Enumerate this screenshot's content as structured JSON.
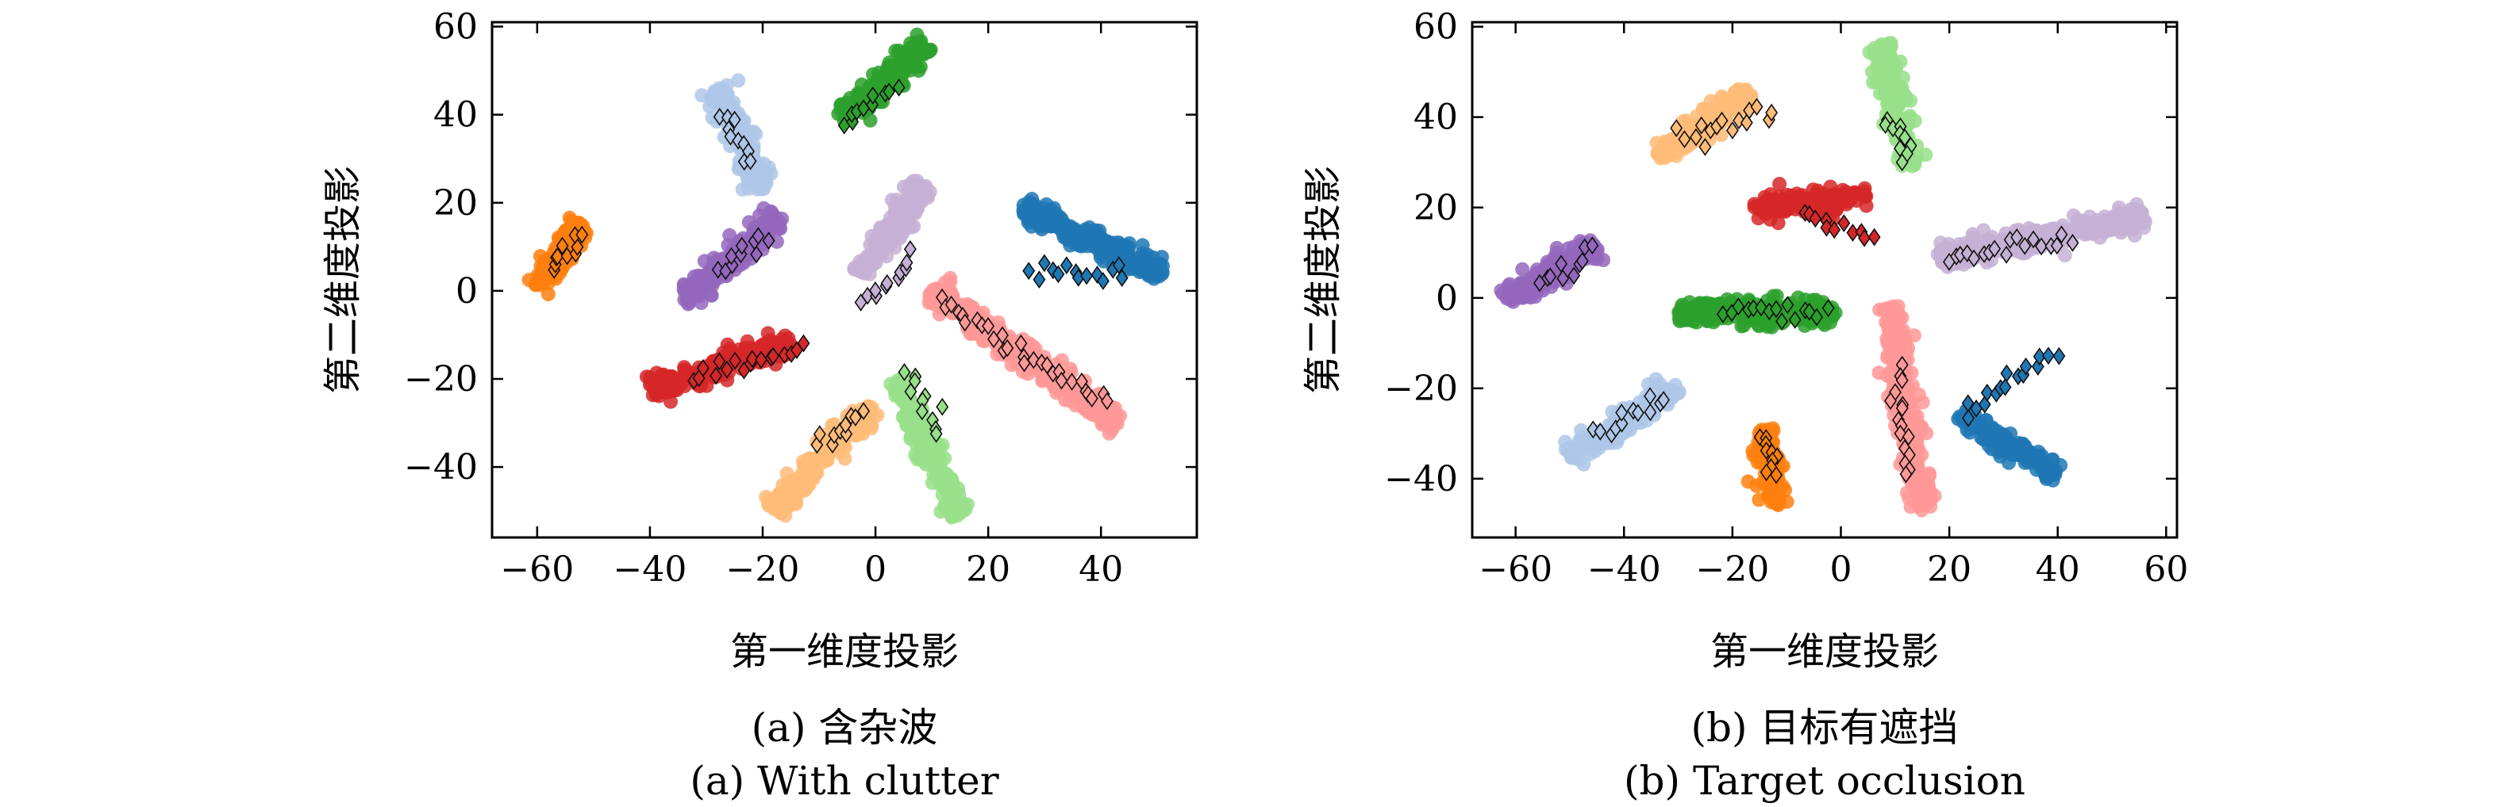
{
  "chart_data": [
    {
      "type": "scatter",
      "caption_cn": "(a) 含杂波",
      "caption_en": "(a) With clutter",
      "xlabel": "第一维度投影",
      "ylabel": "第二维度投影",
      "xlim": [
        -68,
        57
      ],
      "ylim": [
        -56,
        61
      ],
      "xticks": [
        -60,
        -40,
        -20,
        0,
        20,
        40
      ],
      "yticks": [
        -40,
        -20,
        0,
        20,
        40,
        60
      ],
      "grid": false,
      "legend": "none",
      "marker_note": "filled dots = training features; black-edged diamonds = test features",
      "clusters": [
        {
          "color": "#ff7f0e",
          "dots": [
            [
              -60,
              1
            ],
            [
              -52,
              15
            ]
          ],
          "diamonds": [
            [
              -58,
              5
            ],
            [
              -52,
              13
            ]
          ]
        },
        {
          "color": "#aec7e8",
          "dots": [
            [
              -28,
              46
            ],
            [
              -20,
              23
            ]
          ],
          "diamonds": [
            [
              -27,
              41
            ],
            [
              -22,
              28
            ]
          ]
        },
        {
          "color": "#9467bd",
          "dots": [
            [
              -34,
              -2
            ],
            [
              -17,
              17
            ]
          ],
          "diamonds": [
            [
              -28,
              4
            ],
            [
              -19,
              13
            ]
          ]
        },
        {
          "color": "#d62728",
          "dots": [
            [
              -40,
              -22
            ],
            [
              -15,
              -12
            ]
          ],
          "diamonds": [
            [
              -33,
              -19
            ],
            [
              -12,
              -13
            ]
          ]
        },
        {
          "color": "#2ca02c",
          "dots": [
            [
              -6,
              39
            ],
            [
              9,
              56
            ]
          ],
          "diamonds": [
            [
              -6,
              37
            ],
            [
              4,
              47
            ]
          ]
        },
        {
          "color": "#c5b0d5",
          "dots": [
            [
              -3,
              4
            ],
            [
              9,
              24
            ]
          ],
          "diamonds": [
            [
              -3,
              -3
            ],
            [
              7,
              9
            ]
          ]
        },
        {
          "color": "#1f77b4",
          "dots": [
            [
              26,
              19
            ],
            [
              51,
              4
            ]
          ],
          "diamonds": [
            [
              27,
              5
            ],
            [
              45,
              4
            ]
          ]
        },
        {
          "color": "#ff9896",
          "dots": [
            [
              10,
              0
            ],
            [
              43,
              -30
            ]
          ],
          "diamonds": [
            [
              11,
              -2
            ],
            [
              42,
              -26
            ]
          ]
        },
        {
          "color": "#ffbb78",
          "dots": [
            [
              -18,
              -50
            ],
            [
              -1,
              -26
            ]
          ],
          "diamonds": [
            [
              -10,
              -36
            ],
            [
              -2,
              -27
            ]
          ]
        },
        {
          "color": "#98df8a",
          "dots": [
            [
              4,
              -20
            ],
            [
              15,
              -51
            ]
          ],
          "diamonds": [
            [
              5,
              -18
            ],
            [
              12,
              -33
            ]
          ]
        }
      ]
    },
    {
      "type": "scatter",
      "caption_cn": "(b) 目标有遮挡",
      "caption_en": "(b) Target occlusion",
      "xlabel": "第一维度投影",
      "ylabel": "第二维度投影",
      "xlim": [
        -68,
        62
      ],
      "ylim": [
        -53,
        61
      ],
      "xticks": [
        -60,
        -40,
        -20,
        0,
        20,
        40,
        60
      ],
      "yticks": [
        -40,
        -20,
        0,
        20,
        40,
        60
      ],
      "grid": false,
      "legend": "none",
      "marker_note": "filled dots = training features; black-edged diamonds = test features",
      "clusters": [
        {
          "color": "#ffbb78",
          "dots": [
            [
              -34,
              31
            ],
            [
              -17,
              46
            ]
          ],
          "diamonds": [
            [
              -30,
              34
            ],
            [
              -12,
              42
            ]
          ]
        },
        {
          "color": "#98df8a",
          "dots": [
            [
              7,
              56
            ],
            [
              13,
              29
            ]
          ],
          "diamonds": [
            [
              8,
              40
            ],
            [
              13,
              30
            ]
          ]
        },
        {
          "color": "#d62728",
          "dots": [
            [
              -16,
              20
            ],
            [
              5,
              22
            ]
          ],
          "diamonds": [
            [
              -7,
              20
            ],
            [
              6,
              12
            ]
          ]
        },
        {
          "color": "#9467bd",
          "dots": [
            [
              -62,
              0
            ],
            [
              -45,
              11
            ]
          ],
          "diamonds": [
            [
              -56,
              3
            ],
            [
              -45,
              11
            ]
          ]
        },
        {
          "color": "#c5b0d5",
          "dots": [
            [
              18,
              9
            ],
            [
              56,
              18
            ]
          ],
          "diamonds": [
            [
              19,
              9
            ],
            [
              43,
              13
            ]
          ]
        },
        {
          "color": "#2ca02c",
          "dots": [
            [
              -30,
              -3
            ],
            [
              -1,
              -3
            ]
          ],
          "diamonds": [
            [
              -22,
              -3
            ],
            [
              -2,
              -3
            ]
          ]
        },
        {
          "color": "#aec7e8",
          "dots": [
            [
              -50,
              -35
            ],
            [
              -30,
              -20
            ]
          ],
          "diamonds": [
            [
              -46,
              -31
            ],
            [
              -32,
              -21
            ]
          ]
        },
        {
          "color": "#ff7f0e",
          "dots": [
            [
              -14,
              -29
            ],
            [
              -12,
              -46
            ]
          ],
          "diamonds": [
            [
              -14,
              -30
            ],
            [
              -12,
              -40
            ]
          ]
        },
        {
          "color": "#ff9896",
          "dots": [
            [
              9,
              -2
            ],
            [
              15,
              -47
            ]
          ],
          "diamonds": [
            [
              10,
              -15
            ],
            [
              13,
              -40
            ]
          ]
        },
        {
          "color": "#1f77b4",
          "dots": [
            [
              22,
              -26
            ],
            [
              40,
              -39
            ]
          ],
          "diamonds": [
            [
              23,
              -27
            ],
            [
              39,
              -10
            ]
          ]
        }
      ]
    }
  ]
}
